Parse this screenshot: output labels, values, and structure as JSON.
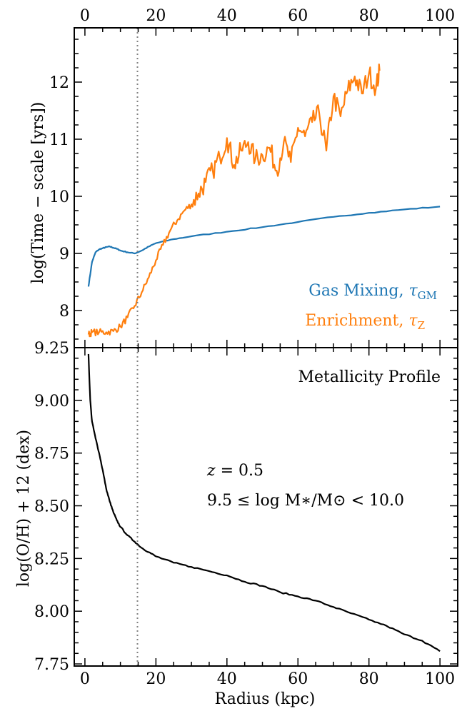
{
  "chart_data": [
    {
      "type": "line",
      "xlabel": "",
      "ylabel": "log(Time − scale [yrs])",
      "xlim": [
        -3,
        105
      ],
      "ylim": [
        7.35,
        12.95
      ],
      "xticks": [
        0,
        20,
        40,
        60,
        80,
        100
      ],
      "xtick_labels": [
        "0",
        "20",
        "40",
        "60",
        "80",
        "100"
      ],
      "yticks": [
        8,
        9,
        10,
        11,
        12
      ],
      "ytick_labels": [
        "8",
        "9",
        "10",
        "11",
        "12"
      ],
      "xtick_minor_step": 5,
      "ytick_minor_step": 0.25,
      "grid": false,
      "legend_position": "bottom-right",
      "vline_x": 14.8,
      "series": [
        {
          "name": "Gas Mixing, τ_GM",
          "label_text": "Gas Mixing, ",
          "label_symbol": "τ",
          "label_sub": "GM",
          "color": "#1f77b4",
          "x": [
            1,
            2,
            3,
            4,
            5,
            6,
            7,
            8,
            9,
            10,
            12,
            14,
            16,
            18,
            20,
            25,
            30,
            40,
            50,
            60,
            70,
            80,
            90,
            100
          ],
          "y": [
            8.42,
            8.85,
            9.02,
            9.07,
            9.09,
            9.11,
            9.12,
            9.1,
            9.08,
            9.05,
            9.02,
            9.0,
            9.05,
            9.12,
            9.18,
            9.25,
            9.3,
            9.38,
            9.46,
            9.55,
            9.64,
            9.71,
            9.77,
            9.82
          ]
        },
        {
          "name": "Enrichment, τ_Z",
          "label_text": "Enrichment, ",
          "label_symbol": "τ",
          "label_sub": "Z",
          "color": "#ff7f0e",
          "x": [
            1,
            2,
            4,
            6,
            8,
            10,
            12,
            14,
            16,
            18,
            20,
            22,
            24,
            26,
            28,
            30,
            32,
            34,
            36,
            38,
            40,
            42,
            44,
            46,
            48,
            50,
            52,
            54,
            56,
            58,
            60,
            62,
            64,
            66,
            68,
            70,
            72,
            74,
            76,
            78,
            80,
            82,
            83
          ],
          "y": [
            7.58,
            7.62,
            7.62,
            7.62,
            7.64,
            7.72,
            7.88,
            8.08,
            8.32,
            8.58,
            8.88,
            9.15,
            9.4,
            9.58,
            9.75,
            9.86,
            10.05,
            10.25,
            10.45,
            10.68,
            11.02,
            10.55,
            10.8,
            10.95,
            10.65,
            10.72,
            10.85,
            10.45,
            10.95,
            10.6,
            11.2,
            11.05,
            11.3,
            11.45,
            10.8,
            11.75,
            11.4,
            11.85,
            12.1,
            11.8,
            12.15,
            11.9,
            12.2
          ]
        }
      ]
    },
    {
      "type": "line",
      "title": "Metallicity Profile",
      "xlabel": "Radius (kpc)",
      "ylabel": "log(O/H) + 12 (dex)",
      "xlim": [
        -3,
        105
      ],
      "ylim": [
        7.74,
        9.25
      ],
      "xticks": [
        0,
        20,
        40,
        60,
        80,
        100
      ],
      "xtick_labels": [
        "0",
        "20",
        "40",
        "60",
        "80",
        "100"
      ],
      "yticks": [
        7.75,
        8.0,
        8.25,
        8.5,
        8.75,
        9.0,
        9.25
      ],
      "ytick_labels": [
        "7.75",
        "8.00",
        "8.25",
        "8.50",
        "8.75",
        "9.00",
        "9.25"
      ],
      "xtick_minor_step": 5,
      "ytick_minor_step": 0.05,
      "grid": false,
      "vline_x": 14.8,
      "annotations": {
        "redshift": {
          "symbol": "z",
          "rest": " = 0.5"
        },
        "mass": "9.5 ≤ log M∗/M⊙ < 10.0"
      },
      "series": [
        {
          "color": "#000000",
          "x": [
            1,
            1.5,
            2,
            3,
            4,
            5,
            6,
            7,
            8,
            9,
            10,
            12,
            14,
            16,
            18,
            20,
            25,
            30,
            35,
            40,
            45,
            50,
            55,
            60,
            65,
            70,
            75,
            80,
            85,
            90,
            95,
            100
          ],
          "y": [
            9.22,
            9.0,
            8.9,
            8.82,
            8.75,
            8.67,
            8.58,
            8.52,
            8.47,
            8.43,
            8.4,
            8.36,
            8.33,
            8.3,
            8.28,
            8.26,
            8.23,
            8.21,
            8.19,
            8.17,
            8.14,
            8.12,
            8.09,
            8.07,
            8.05,
            8.02,
            7.99,
            7.96,
            7.93,
            7.89,
            7.86,
            7.81
          ]
        }
      ]
    }
  ]
}
